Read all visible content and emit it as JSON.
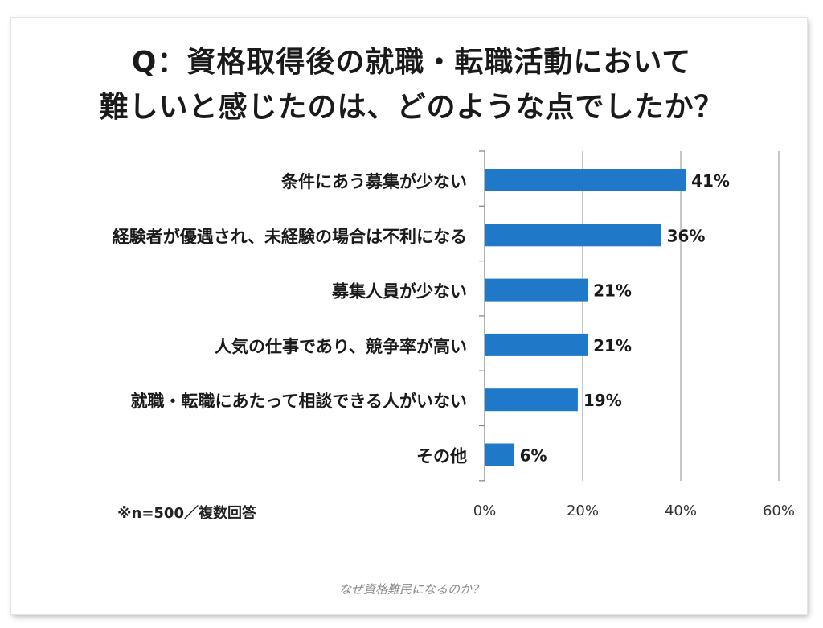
{
  "caption": "なぜ資格難民になるのか？",
  "chart_data": {
    "type": "bar",
    "orientation": "horizontal",
    "title_lines": [
      "Q：資格取得後の就職・転職活動において",
      "難しいと感じたのは、どのような点でしたか？"
    ],
    "categories": [
      "条件にあう募集が少ない",
      "経験者が優遇され、未経験の場合は不利になる",
      "募集人員が少ない",
      "人気の仕事であり、競争率が高い",
      "就職・転職にあたって相談できる人がいない",
      "その他"
    ],
    "values": [
      41,
      36,
      21,
      21,
      19,
      6
    ],
    "data_labels": [
      "41%",
      "36%",
      "21%",
      "21%",
      "19%",
      "6%"
    ],
    "x_ticks": [
      "0%",
      "20%",
      "40%",
      "60%"
    ],
    "x_tick_values": [
      0,
      20,
      40,
      60
    ],
    "xlim": [
      0,
      60
    ],
    "grid": true,
    "bar_color": "#1f78c8",
    "note": "※n=500／複数回答"
  }
}
